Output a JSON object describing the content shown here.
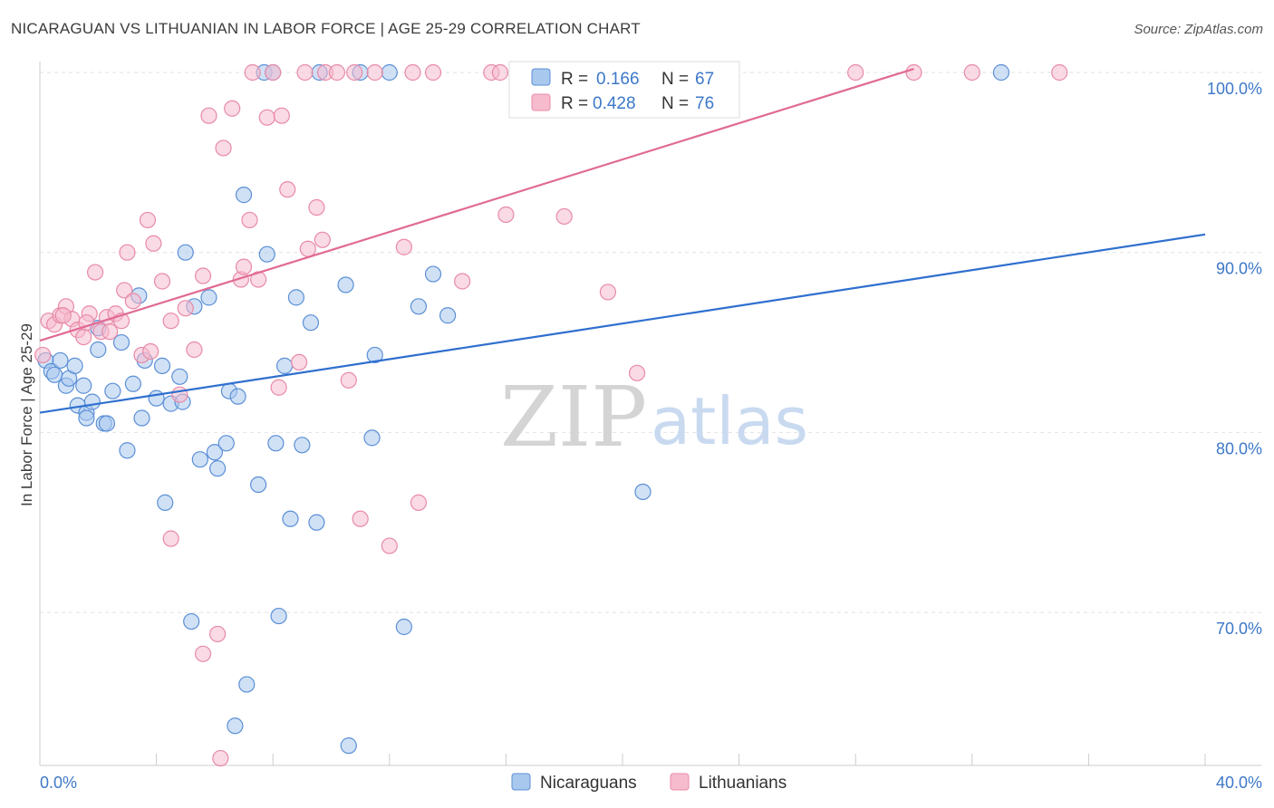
{
  "title": "NICARAGUAN VS LITHUANIAN IN LABOR FORCE | AGE 25-29 CORRELATION CHART",
  "source": "Source: ZipAtlas.com",
  "colors": {
    "blue_fill": "#a9c8ee",
    "blue_stroke": "#5b8fd6",
    "blue_line": "#2f6fcf",
    "pink_fill": "#f6bccd",
    "pink_stroke": "#e88aa8",
    "pink_line": "#e06a95",
    "grid": "#e2e2e2",
    "tick_text": "#3d78c8"
  },
  "legend_top": {
    "rows": [
      {
        "r_label": "R =",
        "r_value": "0.166",
        "n_label": "N =",
        "n_value": "67"
      },
      {
        "r_label": "R =",
        "r_value": "0.428",
        "n_label": "N =",
        "n_value": "76"
      }
    ]
  },
  "watermark": {
    "zip": "ZIP",
    "atlas": "atlas"
  },
  "chart_data": {
    "type": "scatter",
    "xlabel": "",
    "ylabel": "In Labor Force | Age 25-29",
    "xlim": [
      0,
      40
    ],
    "ylim": [
      61.5,
      101
    ],
    "x_tick_labels": [
      {
        "value": 0,
        "label": "0.0%"
      },
      {
        "value": 40,
        "label": "40.0%"
      }
    ],
    "y_tick_labels": [
      {
        "value": 100,
        "label": "100.0%"
      },
      {
        "value": 90,
        "label": "90.0%"
      },
      {
        "value": 80,
        "label": "80.0%"
      },
      {
        "value": 70,
        "label": "70.0%"
      }
    ],
    "y_gridlines": [
      100,
      90,
      80,
      70
    ],
    "grid": true,
    "legend_placement": "bottom-center",
    "series": [
      {
        "name": "Nicaraguans",
        "color": "#a9c8ee",
        "trend": [
          [
            0,
            81.1
          ],
          [
            40,
            91.0
          ]
        ],
        "points": [
          [
            0.2,
            84.0
          ],
          [
            0.4,
            83.4
          ],
          [
            0.5,
            83.2
          ],
          [
            0.7,
            84.0
          ],
          [
            0.9,
            82.6
          ],
          [
            1.0,
            83.0
          ],
          [
            1.2,
            83.7
          ],
          [
            1.3,
            81.5
          ],
          [
            1.5,
            82.6
          ],
          [
            1.6,
            81.1
          ],
          [
            1.8,
            81.7
          ],
          [
            2.0,
            84.6
          ],
          [
            2.2,
            80.5
          ],
          [
            2.3,
            80.5
          ],
          [
            2.5,
            82.3
          ],
          [
            2.8,
            85.0
          ],
          [
            3.2,
            82.7
          ],
          [
            3.5,
            80.8
          ],
          [
            3.6,
            84.0
          ],
          [
            4.0,
            81.9
          ],
          [
            4.2,
            83.7
          ],
          [
            4.5,
            81.6
          ],
          [
            4.8,
            83.1
          ],
          [
            5.0,
            90.0
          ],
          [
            5.3,
            87.0
          ],
          [
            5.8,
            87.5
          ],
          [
            6.0,
            78.9
          ],
          [
            6.1,
            78.0
          ],
          [
            6.4,
            79.4
          ],
          [
            6.5,
            82.3
          ],
          [
            6.8,
            82.0
          ],
          [
            7.0,
            93.2
          ],
          [
            7.5,
            77.1
          ],
          [
            7.7,
            100.0
          ],
          [
            7.8,
            89.9
          ],
          [
            8.0,
            100.0
          ],
          [
            8.2,
            69.8
          ],
          [
            8.4,
            83.7
          ],
          [
            8.6,
            75.2
          ],
          [
            8.8,
            87.5
          ],
          [
            9.0,
            79.3
          ],
          [
            9.3,
            86.1
          ],
          [
            9.5,
            75.0
          ],
          [
            10.5,
            88.2
          ],
          [
            11.0,
            100.0
          ],
          [
            11.5,
            84.3
          ],
          [
            12.0,
            100.0
          ],
          [
            12.5,
            69.2
          ],
          [
            13.0,
            87.0
          ],
          [
            13.5,
            88.8
          ],
          [
            14.0,
            86.5
          ],
          [
            1.6,
            80.8
          ],
          [
            5.2,
            69.5
          ],
          [
            6.7,
            63.7
          ],
          [
            7.1,
            66.0
          ],
          [
            10.6,
            62.6
          ],
          [
            20.7,
            76.7
          ],
          [
            11.4,
            79.7
          ],
          [
            4.3,
            76.1
          ],
          [
            3.0,
            79.0
          ],
          [
            5.5,
            78.5
          ],
          [
            3.4,
            87.6
          ],
          [
            9.6,
            100.0
          ],
          [
            33.0,
            100.0
          ],
          [
            2.0,
            85.8
          ],
          [
            4.9,
            81.7
          ],
          [
            8.1,
            79.4
          ]
        ]
      },
      {
        "name": "Lithuanians",
        "color": "#f6bccd",
        "trend": [
          [
            0,
            85.1
          ],
          [
            30,
            100.2
          ]
        ],
        "points": [
          [
            0.1,
            84.3
          ],
          [
            0.3,
            86.2
          ],
          [
            0.5,
            86.0
          ],
          [
            0.7,
            86.5
          ],
          [
            0.9,
            87.0
          ],
          [
            1.1,
            86.3
          ],
          [
            1.3,
            85.7
          ],
          [
            1.5,
            85.3
          ],
          [
            1.7,
            86.6
          ],
          [
            1.9,
            88.9
          ],
          [
            2.1,
            85.6
          ],
          [
            2.3,
            86.4
          ],
          [
            2.6,
            86.6
          ],
          [
            2.9,
            87.9
          ],
          [
            3.0,
            90.0
          ],
          [
            3.2,
            87.3
          ],
          [
            3.5,
            84.3
          ],
          [
            3.7,
            91.8
          ],
          [
            3.9,
            90.5
          ],
          [
            4.2,
            88.4
          ],
          [
            4.5,
            86.2
          ],
          [
            4.8,
            82.1
          ],
          [
            5.0,
            86.9
          ],
          [
            5.3,
            84.6
          ],
          [
            5.6,
            88.7
          ],
          [
            5.8,
            97.6
          ],
          [
            6.1,
            68.8
          ],
          [
            6.3,
            95.8
          ],
          [
            6.6,
            98.0
          ],
          [
            6.9,
            88.5
          ],
          [
            7.2,
            91.8
          ],
          [
            7.5,
            88.5
          ],
          [
            7.8,
            97.5
          ],
          [
            8.0,
            100.0
          ],
          [
            8.2,
            82.5
          ],
          [
            8.5,
            93.5
          ],
          [
            8.9,
            83.9
          ],
          [
            9.2,
            90.2
          ],
          [
            9.5,
            92.5
          ],
          [
            9.8,
            100.0
          ],
          [
            10.2,
            100.0
          ],
          [
            10.6,
            82.9
          ],
          [
            11.0,
            75.2
          ],
          [
            11.5,
            100.0
          ],
          [
            12.0,
            73.7
          ],
          [
            12.5,
            90.3
          ],
          [
            13.0,
            76.1
          ],
          [
            13.5,
            100.0
          ],
          [
            14.5,
            88.4
          ],
          [
            15.5,
            100.0
          ],
          [
            16.0,
            92.1
          ],
          [
            17.0,
            100.0
          ],
          [
            19.5,
            87.8
          ],
          [
            20.5,
            83.3
          ],
          [
            22.5,
            100.0
          ],
          [
            28.0,
            100.0
          ],
          [
            30.0,
            100.0
          ],
          [
            32.0,
            100.0
          ],
          [
            35.0,
            100.0
          ],
          [
            4.5,
            74.1
          ],
          [
            5.6,
            67.7
          ],
          [
            6.2,
            61.9
          ],
          [
            8.3,
            97.6
          ],
          [
            2.4,
            85.6
          ],
          [
            3.8,
            84.5
          ],
          [
            9.1,
            100.0
          ],
          [
            10.8,
            100.0
          ],
          [
            7.3,
            100.0
          ],
          [
            12.8,
            100.0
          ],
          [
            15.8,
            100.0
          ],
          [
            9.7,
            90.7
          ],
          [
            7.0,
            89.2
          ],
          [
            1.6,
            86.1
          ],
          [
            0.8,
            86.5
          ],
          [
            2.8,
            86.2
          ],
          [
            18.0,
            92.0
          ]
        ]
      }
    ]
  }
}
